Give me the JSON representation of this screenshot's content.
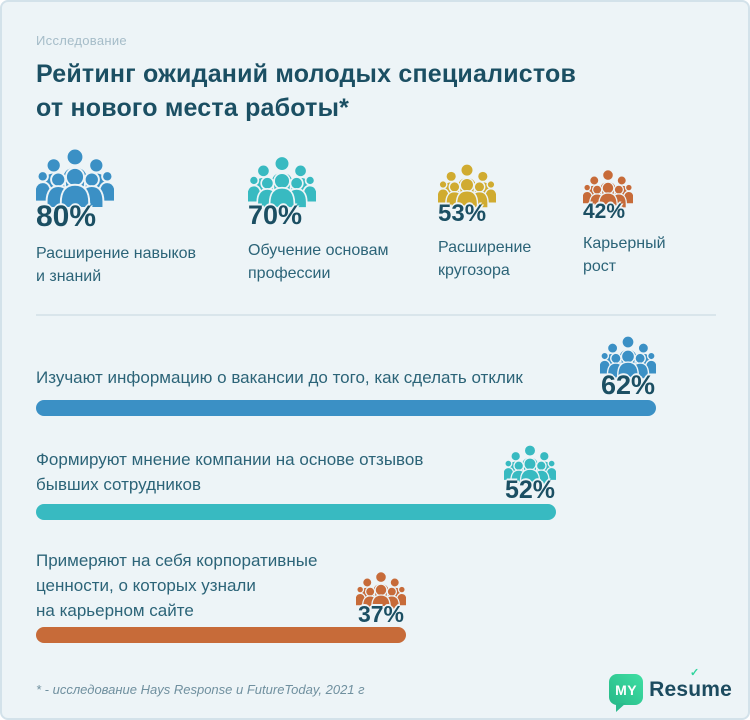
{
  "colors": {
    "background": "#edf4f7",
    "panel_border": "#d3e2ea",
    "divider": "#d9e5eb",
    "text_dark": "#1b4f63",
    "text_label": "#2c6478",
    "text_muted": "#a5bcc8",
    "text_footnote": "#70909f",
    "blue": "#3b90c5",
    "teal": "#38bac1",
    "yellow": "#d0ab30",
    "orange": "#c76b39",
    "logo_green": "#2abb8c",
    "logo_text": "#1c4b5f"
  },
  "header": {
    "eyebrow": "Исследование",
    "title_line1": "Рейтинг ожиданий молодых специалистов",
    "title_line2": "от нового места работы*"
  },
  "stats": {
    "items": [
      {
        "value": "80%",
        "label_line1": "Расширение навыков",
        "label_line2": "и знаний",
        "color": "#3b90c5",
        "icon": "crowd-icon"
      },
      {
        "value": "70%",
        "label_line1": "Обучение основам",
        "label_line2": "профессии",
        "color": "#38bac1",
        "icon": "crowd-icon"
      },
      {
        "value": "53%",
        "label_line1": "Расширение",
        "label_line2": "кругозора",
        "color": "#d0ab30",
        "icon": "crowd-icon"
      },
      {
        "value": "42%",
        "label_line1": "Карьерный",
        "label_line2": "рост",
        "color": "#c76b39",
        "icon": "crowd-icon"
      }
    ]
  },
  "main": {
    "bars": [
      {
        "value": 62,
        "pct_label": "62%",
        "color": "#3b90c5",
        "icon": "crowd-icon",
        "label_lines": [
          "Изучают информацию о вакансии до того, как сделать отклик"
        ]
      },
      {
        "value": 52,
        "pct_label": "52%",
        "color": "#38bac1",
        "icon": "crowd-icon",
        "label_lines": [
          "Формируют мнение компании на основе отзывов",
          "бывших сотрудников"
        ]
      },
      {
        "value": 37,
        "pct_label": "37%",
        "color": "#c76b39",
        "icon": "crowd-icon",
        "label_lines": [
          "Примеряют на себя корпоративные",
          "ценности, о которых узнали",
          "на карьерном сайте"
        ]
      }
    ]
  },
  "footer": {
    "footnote": "* - исследование Hays Response и FutureToday, 2021 г",
    "logo": {
      "my": "MY",
      "resume_part1": "Res",
      "resume_u": "u",
      "resume_part2": "me",
      "check": "✓"
    }
  },
  "chart_data": [
    {
      "type": "bar",
      "title": "Рейтинг ожиданий молодых специалистов от нового места работы*",
      "categories": [
        "Расширение навыков и знаний",
        "Обучение основам профессии",
        "Расширение кругозора",
        "Карьерный рост"
      ],
      "values": [
        80,
        70,
        53,
        42
      ],
      "unit": "%",
      "colors": [
        "#3b90c5",
        "#38bac1",
        "#d0ab30",
        "#c76b39"
      ],
      "xlabel": "",
      "ylabel": "",
      "legend_position": "none",
      "style": "pictogram (crowd icons sized by value, percentage labels below icons)"
    },
    {
      "type": "bar",
      "orientation": "horizontal",
      "categories": [
        "Изучают информацию о вакансии до того, как сделать отклик",
        "Формируют мнение компании на основе отзывов бывших сотрудников",
        "Примеряют на себя корпоративные ценности, о которых узнали на карьерном сайте"
      ],
      "values": [
        62,
        52,
        37
      ],
      "unit": "%",
      "colors": [
        "#3b90c5",
        "#38bac1",
        "#c76b39"
      ],
      "xlim": [
        0,
        62
      ],
      "grid": false,
      "legend_position": "none",
      "style": "rounded bars, crowd icon + percentage label placed at bar end"
    }
  ]
}
